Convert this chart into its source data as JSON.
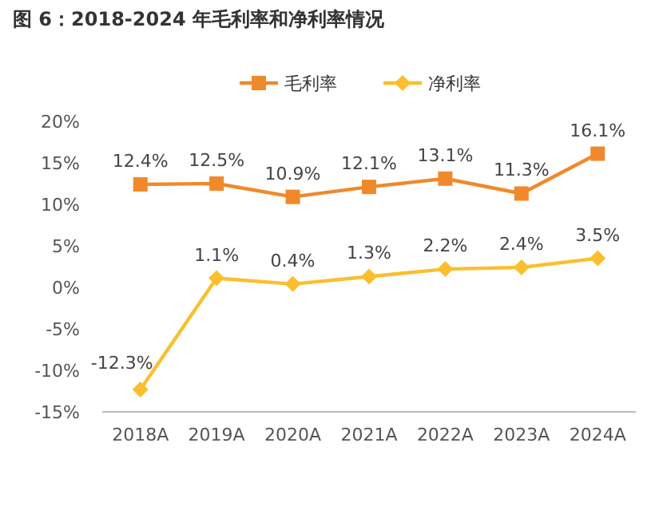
{
  "chart_data": {
    "type": "line",
    "title": "图 6：2018-2024 年毛利率和净利率情况",
    "categories": [
      "2018A",
      "2019A",
      "2020A",
      "2021A",
      "2022A",
      "2023A",
      "2024A"
    ],
    "series": [
      {
        "name": "毛利率",
        "color": "#f0892b",
        "marker": "square",
        "values": [
          12.4,
          12.5,
          10.9,
          12.1,
          13.1,
          11.3,
          16.1
        ],
        "value_labels": [
          "12.4%",
          "12.5%",
          "10.9%",
          "12.1%",
          "13.1%",
          "11.3%",
          "16.1%"
        ]
      },
      {
        "name": "净利率",
        "color": "#fbbf2e",
        "marker": "diamond",
        "values": [
          -12.3,
          1.1,
          0.4,
          1.3,
          2.2,
          2.4,
          3.5
        ],
        "value_labels": [
          "-12.3%",
          "1.1%",
          "0.4%",
          "1.3%",
          "2.2%",
          "2.4%",
          "3.5%"
        ]
      }
    ],
    "ylim": [
      -15,
      20
    ],
    "yticks": [
      {
        "value": 20,
        "label": "20%"
      },
      {
        "value": 15,
        "label": "15%"
      },
      {
        "value": 10,
        "label": "10%"
      },
      {
        "value": 5,
        "label": "5%"
      },
      {
        "value": 0,
        "label": "0%"
      },
      {
        "value": -5,
        "label": "-5%"
      },
      {
        "value": -10,
        "label": "-10%"
      },
      {
        "value": -15,
        "label": "-15%"
      }
    ],
    "legend": "top",
    "grid": false
  }
}
